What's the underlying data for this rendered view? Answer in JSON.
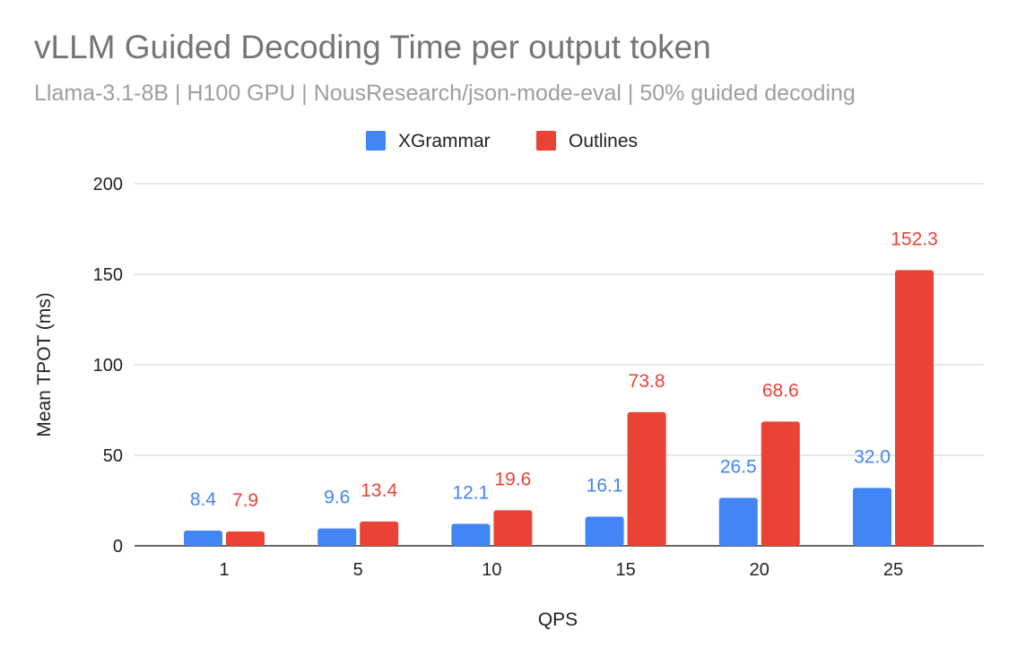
{
  "chart_data": {
    "type": "bar",
    "title": "vLLM Guided Decoding Time per output token",
    "subtitle": "Llama-3.1-8B | H100 GPU | NousResearch/json-mode-eval | 50% guided decoding",
    "xlabel": "QPS",
    "ylabel": "Mean TPOT (ms)",
    "categories": [
      "1",
      "5",
      "10",
      "15",
      "20",
      "25"
    ],
    "ylim": [
      0,
      200
    ],
    "yticks": [
      0,
      50,
      100,
      150,
      200
    ],
    "grid": true,
    "legend": "top",
    "series": [
      {
        "name": "XGrammar",
        "color": "#4285F4",
        "values": [
          8.4,
          9.6,
          12.1,
          16.1,
          26.5,
          32.0
        ],
        "labels": [
          "8.4",
          "9.6",
          "12.1",
          "16.1",
          "26.5",
          "32.0"
        ]
      },
      {
        "name": "Outlines",
        "color": "#EA4335",
        "values": [
          7.9,
          13.4,
          19.6,
          73.8,
          68.6,
          152.3
        ],
        "labels": [
          "7.9",
          "13.4",
          "19.6",
          "73.8",
          "68.6",
          "152.3"
        ]
      }
    ]
  }
}
